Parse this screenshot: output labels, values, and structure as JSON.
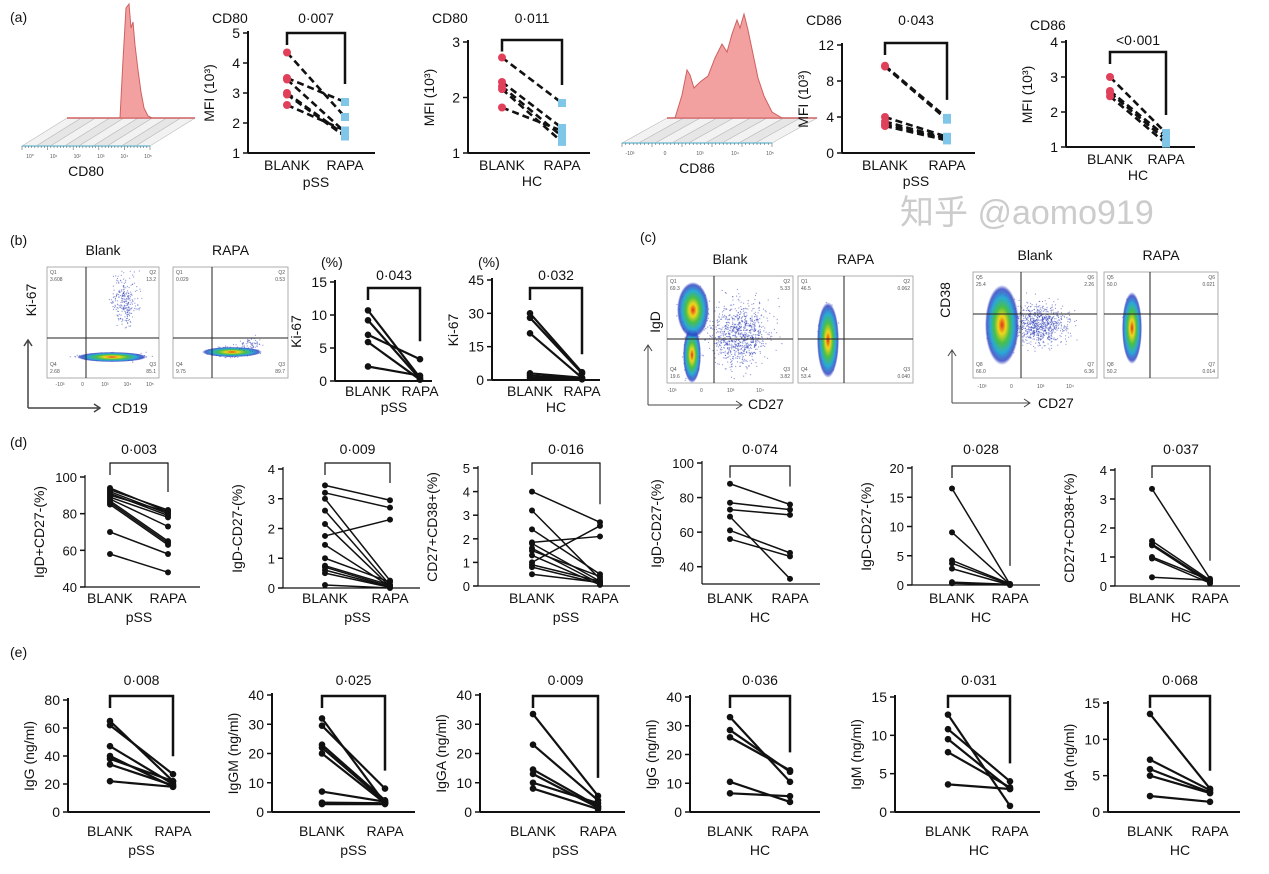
{
  "panel_labels": {
    "a": "(a)",
    "b": "(b)",
    "c": "(c)",
    "d": "(d)",
    "e": "(e)"
  },
  "colors": {
    "blank_marker": "#e0405a",
    "rapa_marker": "#7fc6e8",
    "histogram_fill": "#f2a0a0",
    "histogram_line": "#d06060",
    "line": "#111111"
  },
  "histograms": [
    {
      "axis_label": "CD80",
      "ticks": [
        "10⁰",
        "10¹",
        "10²",
        "10³",
        "10⁴",
        "10⁵"
      ]
    },
    {
      "axis_label": "CD86",
      "ticks": [
        "-10³",
        "0",
        "10³",
        "10⁴",
        "10⁵"
      ]
    }
  ],
  "flow": {
    "b": {
      "y_label": "Ki-67",
      "x_label": "CD19",
      "x_ticks": [
        "-10³",
        "0",
        "10³",
        "10⁴",
        "10⁵"
      ],
      "plots": [
        {
          "title": "Blank",
          "quadrants": [
            [
              "Q1",
              "3.608"
            ],
            [
              "Q2",
              "13.2"
            ],
            [
              "Q3",
              "85.1"
            ],
            [
              "Q4",
              "2.68"
            ]
          ]
        },
        {
          "title": "RAPA",
          "quadrants": [
            [
              "Q1",
              "0.029"
            ],
            [
              "Q2",
              "0.53"
            ],
            [
              "Q3",
              "89.7"
            ],
            [
              "Q4",
              "9.75"
            ]
          ]
        }
      ]
    },
    "c_igd": {
      "y_label": "IgD",
      "x_label": "CD27",
      "x_ticks": [
        "-10³",
        "0",
        "10³",
        "10⁴"
      ],
      "plots": [
        {
          "title": "Blank",
          "quadrants": [
            [
              "Q1",
              "69.3"
            ],
            [
              "Q2",
              "5.33"
            ],
            [
              "Q3",
              "3.82"
            ],
            [
              "Q4",
              "19.6"
            ]
          ]
        },
        {
          "title": "RAPA",
          "quadrants": [
            [
              "Q1",
              "46.5"
            ],
            [
              "Q2",
              "0.062"
            ],
            [
              "Q3",
              "0.040"
            ],
            [
              "Q4",
              "53.4"
            ]
          ]
        }
      ]
    },
    "c_cd38": {
      "y_label": "CD38",
      "x_label": "CD27",
      "x_ticks": [
        "-10³",
        "0",
        "10³",
        "10⁴"
      ],
      "plots": [
        {
          "title": "Blank",
          "quadrants": [
            [
              "Q5",
              "25.4"
            ],
            [
              "Q6",
              "2.26"
            ],
            [
              "Q7",
              "6.36"
            ],
            [
              "Q8",
              "66.0"
            ]
          ]
        },
        {
          "title": "RAPA",
          "quadrants": [
            [
              "Q5",
              "50.0"
            ],
            [
              "Q6",
              "0.021"
            ],
            [
              "Q7",
              "0.014"
            ],
            [
              "Q8",
              "50.2"
            ]
          ]
        }
      ]
    }
  },
  "chart_data": [
    {
      "type": "line",
      "panel": "a",
      "title": "CD80",
      "p_value": "0·007",
      "ylabel": "MFI (10³)",
      "ylim": [
        1,
        5
      ],
      "yticks": [
        1,
        2,
        3,
        4,
        5
      ],
      "categories": [
        "BLANK",
        "RAPA"
      ],
      "group": "pSS",
      "style": "colored-dashed",
      "pairs": [
        [
          4.35,
          2.2
        ],
        [
          3.5,
          2.7
        ],
        [
          3.45,
          1.7
        ],
        [
          3.0,
          1.6
        ],
        [
          2.95,
          1.55
        ],
        [
          2.6,
          1.75
        ]
      ]
    },
    {
      "type": "line",
      "panel": "a",
      "title": "CD80",
      "p_value": "0·011",
      "ylabel": "MFI (10³)",
      "ylim": [
        1,
        3
      ],
      "yticks": [
        1,
        2,
        3
      ],
      "categories": [
        "BLANK",
        "RAPA"
      ],
      "group": "HC",
      "style": "colored-dashed",
      "pairs": [
        [
          2.72,
          1.9
        ],
        [
          2.28,
          1.45
        ],
        [
          2.2,
          1.3
        ],
        [
          2.15,
          1.2
        ],
        [
          1.82,
          1.4
        ]
      ]
    },
    {
      "type": "line",
      "panel": "a",
      "title": "CD86",
      "p_value": "0·043",
      "ylabel": "MFI (10³)",
      "ylim": [
        0,
        12
      ],
      "yticks": [
        0,
        4,
        8,
        12
      ],
      "categories": [
        "BLANK",
        "RAPA"
      ],
      "group": "pSS",
      "style": "colored-dashed",
      "pairs": [
        [
          9.7,
          3.9
        ],
        [
          9.6,
          3.7
        ],
        [
          4.0,
          1.8
        ],
        [
          3.5,
          1.6
        ],
        [
          3.2,
          1.5
        ],
        [
          3.0,
          1.4
        ]
      ]
    },
    {
      "type": "line",
      "panel": "a",
      "title": "CD86",
      "p_value": "<0·001",
      "ylabel": "MFI (10³)",
      "ylim": [
        1,
        4
      ],
      "yticks": [
        1,
        2,
        3,
        4
      ],
      "categories": [
        "BLANK",
        "RAPA"
      ],
      "group": "HC",
      "style": "colored-dashed",
      "pairs": [
        [
          3.0,
          1.4
        ],
        [
          2.6,
          1.3
        ],
        [
          2.55,
          1.2
        ],
        [
          2.45,
          1.1
        ]
      ]
    },
    {
      "type": "line",
      "panel": "b",
      "unit": "(%)",
      "p_value": "0·043",
      "ylabel": "Ki-67",
      "ylim": [
        0,
        15
      ],
      "yticks": [
        0,
        5,
        10,
        15
      ],
      "categories": [
        "BLANK",
        "RAPA"
      ],
      "group": "pSS",
      "style": "black",
      "pairs": [
        [
          10.7,
          0.5
        ],
        [
          9.2,
          0.3
        ],
        [
          7.0,
          3.3
        ],
        [
          5.9,
          0.2
        ],
        [
          2.2,
          0.8
        ]
      ]
    },
    {
      "type": "line",
      "panel": "b",
      "unit": "(%)",
      "p_value": "0·032",
      "ylabel": "Ki-67",
      "ylim": [
        0,
        45
      ],
      "yticks": [
        0,
        15,
        30,
        45
      ],
      "categories": [
        "BLANK",
        "RAPA"
      ],
      "group": "HC",
      "style": "black",
      "pairs": [
        [
          30,
          3.5
        ],
        [
          28,
          3
        ],
        [
          21,
          1
        ],
        [
          3,
          1
        ],
        [
          2,
          0.5
        ],
        [
          1,
          0.3
        ]
      ]
    },
    {
      "type": "line",
      "panel": "d",
      "p_value": "0·003",
      "ylabel": "IgD+CD27-(%)",
      "ylim": [
        40,
        100
      ],
      "yticks": [
        40,
        60,
        80,
        100
      ],
      "categories": [
        "BLANK",
        "RAPA"
      ],
      "group": "pSS",
      "style": "black-thin",
      "pairs": [
        [
          94,
          81
        ],
        [
          93,
          82
        ],
        [
          92,
          80
        ],
        [
          91,
          79
        ],
        [
          90,
          81
        ],
        [
          89,
          78
        ],
        [
          88,
          73
        ],
        [
          87,
          65
        ],
        [
          86,
          64
        ],
        [
          85,
          63
        ],
        [
          70,
          58
        ],
        [
          58,
          48
        ]
      ]
    },
    {
      "type": "line",
      "panel": "d",
      "p_value": "0·009",
      "ylabel": "IgD-CD27-(%)",
      "ylim": [
        0,
        4
      ],
      "yticks": [
        0,
        1,
        2,
        3,
        4
      ],
      "categories": [
        "BLANK",
        "RAPA"
      ],
      "group": "pSS",
      "style": "black-thin",
      "pairs": [
        [
          3.45,
          2.95
        ],
        [
          3.2,
          2.7
        ],
        [
          3.0,
          0.25
        ],
        [
          2.6,
          0.1
        ],
        [
          2.15,
          0.05
        ],
        [
          1.75,
          2.3
        ],
        [
          1.45,
          0.05
        ],
        [
          1.0,
          0.2
        ],
        [
          0.75,
          0.1
        ],
        [
          0.7,
          0.05
        ],
        [
          0.6,
          0.03
        ],
        [
          0.5,
          0.02
        ],
        [
          0.1,
          0.0
        ]
      ]
    },
    {
      "type": "line",
      "panel": "d",
      "p_value": "0·016",
      "ylabel": "CD27+CD38+(%)",
      "ylim": [
        0,
        5
      ],
      "yticks": [
        0,
        1,
        2,
        3,
        4,
        5
      ],
      "categories": [
        "BLANK",
        "RAPA"
      ],
      "group": "pSS",
      "style": "black-thin",
      "pairs": [
        [
          4.0,
          2.7
        ],
        [
          3.2,
          0.3
        ],
        [
          2.4,
          0.5
        ],
        [
          1.85,
          2.1
        ],
        [
          1.8,
          0.2
        ],
        [
          1.6,
          0.1
        ],
        [
          1.5,
          0.4
        ],
        [
          1.3,
          0.05
        ],
        [
          1.0,
          2.55
        ],
        [
          0.9,
          0.2
        ],
        [
          0.8,
          0.1
        ],
        [
          0.5,
          0.15
        ]
      ]
    },
    {
      "type": "line",
      "panel": "d",
      "p_value": "0·074",
      "ylabel": "IgD-CD27-(%)",
      "ylim": [
        30,
        100
      ],
      "yticks": [
        40,
        60,
        80,
        100
      ],
      "categories": [
        "BLANK",
        "RAPA"
      ],
      "group": "HC",
      "style": "black-thin",
      "pairs": [
        [
          88,
          76
        ],
        [
          77,
          73
        ],
        [
          73,
          70
        ],
        [
          69,
          33
        ],
        [
          61,
          48
        ],
        [
          56,
          46
        ]
      ]
    },
    {
      "type": "line",
      "panel": "d",
      "p_value": "0·028",
      "ylabel": "IgD-CD27-(%)",
      "ylim": [
        0,
        20
      ],
      "yticks": [
        0,
        5,
        10,
        15,
        20
      ],
      "categories": [
        "BLANK",
        "RAPA"
      ],
      "group": "HC",
      "style": "black-thin",
      "pairs": [
        [
          16.5,
          0.1
        ],
        [
          9,
          0.1
        ],
        [
          4.2,
          0.2
        ],
        [
          3.7,
          0.1
        ],
        [
          2.8,
          0
        ],
        [
          0.5,
          0.1
        ],
        [
          0.3,
          0
        ]
      ]
    },
    {
      "type": "line",
      "panel": "d",
      "p_value": "0·037",
      "ylabel": "CD27+CD38+(%)",
      "ylim": [
        0,
        4
      ],
      "yticks": [
        0,
        1,
        2,
        3,
        4
      ],
      "categories": [
        "BLANK",
        "RAPA"
      ],
      "group": "HC",
      "style": "black-thin",
      "pairs": [
        [
          3.35,
          0.25
        ],
        [
          1.55,
          0.2
        ],
        [
          1.45,
          0.15
        ],
        [
          1.4,
          0.1
        ],
        [
          1.0,
          0.2
        ],
        [
          0.95,
          0.1
        ],
        [
          0.3,
          0.2
        ]
      ]
    },
    {
      "type": "line",
      "panel": "e",
      "p_value": "0·008",
      "ylabel": "IgG (ng/ml)",
      "ylim": [
        0,
        80
      ],
      "yticks": [
        0,
        20,
        40,
        60,
        80
      ],
      "categories": [
        "BLANK",
        "RAPA"
      ],
      "group": "pSS",
      "style": "black",
      "pairs": [
        [
          65,
          22
        ],
        [
          62,
          27
        ],
        [
          47,
          20
        ],
        [
          40,
          18
        ],
        [
          38,
          22
        ],
        [
          34,
          19
        ],
        [
          22,
          18
        ]
      ]
    },
    {
      "type": "line",
      "panel": "e",
      "p_value": "0·025",
      "ylabel": "IgGM (ng/ml)",
      "ylim": [
        0,
        40
      ],
      "yticks": [
        0,
        10,
        20,
        30,
        40
      ],
      "categories": [
        "BLANK",
        "RAPA"
      ],
      "group": "pSS",
      "style": "black",
      "pairs": [
        [
          32,
          3
        ],
        [
          29.5,
          8
        ],
        [
          23,
          4
        ],
        [
          22,
          3.5
        ],
        [
          20,
          3
        ],
        [
          7,
          3.5
        ],
        [
          3.2,
          3
        ],
        [
          2.7,
          2.7
        ]
      ]
    },
    {
      "type": "line",
      "panel": "e",
      "p_value": "0·009",
      "ylabel": "IgGA (ng/ml)",
      "ylim": [
        0,
        40
      ],
      "yticks": [
        0,
        10,
        20,
        30,
        40
      ],
      "categories": [
        "BLANK",
        "RAPA"
      ],
      "group": "pSS",
      "style": "black",
      "pairs": [
        [
          33.5,
          5.5
        ],
        [
          23,
          4
        ],
        [
          14.5,
          2
        ],
        [
          13,
          1.5
        ],
        [
          10,
          3
        ],
        [
          8,
          1
        ]
      ]
    },
    {
      "type": "line",
      "panel": "e",
      "p_value": "0·036",
      "ylabel": "IgG (ng/ml)",
      "ylim": [
        0,
        40
      ],
      "yticks": [
        0,
        10,
        20,
        30,
        40
      ],
      "categories": [
        "BLANK",
        "RAPA"
      ],
      "group": "HC",
      "style": "black",
      "pairs": [
        [
          33,
          10.5
        ],
        [
          28.5,
          14
        ],
        [
          26,
          14.5
        ],
        [
          10.5,
          3.5
        ],
        [
          6.5,
          5.5
        ]
      ]
    },
    {
      "type": "line",
      "panel": "e",
      "p_value": "0·031",
      "ylabel": "IgM (ng/ml)",
      "ylim": [
        0,
        15
      ],
      "yticks": [
        0,
        5,
        10,
        15
      ],
      "categories": [
        "BLANK",
        "RAPA"
      ],
      "group": "HC",
      "style": "black",
      "pairs": [
        [
          12.7,
          0.8
        ],
        [
          10.8,
          4
        ],
        [
          9.5,
          3
        ],
        [
          7.8,
          3.2
        ],
        [
          3.6,
          3
        ]
      ]
    },
    {
      "type": "line",
      "panel": "e",
      "p_value": "0·068",
      "ylabel": "IgA (ng/ml)",
      "ylim": [
        0,
        15
      ],
      "yticks": [
        0,
        5,
        10,
        15
      ],
      "categories": [
        "BLANK",
        "RAPA"
      ],
      "group": "HC",
      "style": "black",
      "pairs": [
        [
          13.5,
          3.2
        ],
        [
          7.2,
          3
        ],
        [
          5.9,
          2.7
        ],
        [
          5.0,
          2.6
        ],
        [
          2.2,
          1.4
        ]
      ]
    }
  ],
  "watermark": "知乎 @aomo919"
}
